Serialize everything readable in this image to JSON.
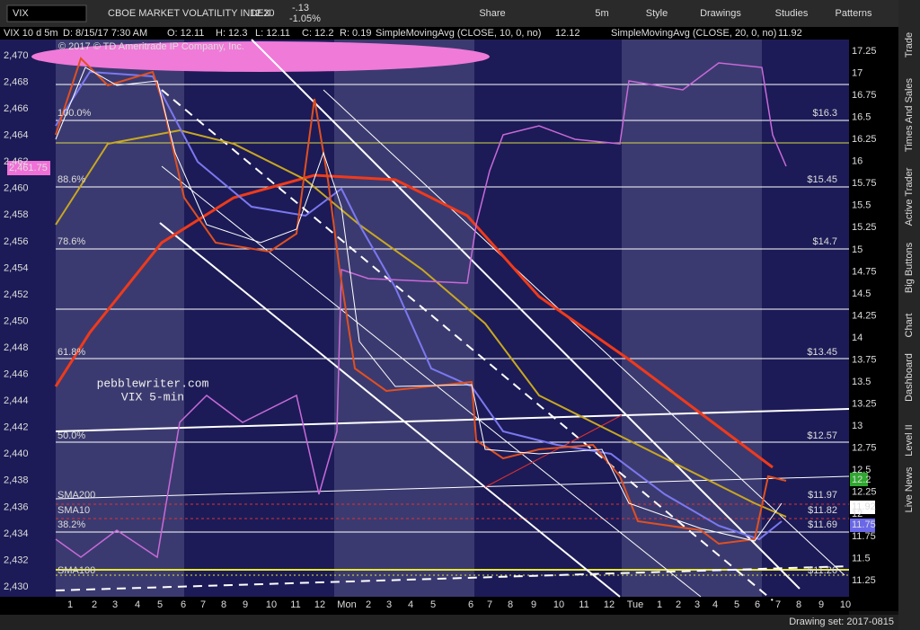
{
  "toolbar": {
    "symbol": "VIX",
    "description": "CBOE MARKET VOLATILITY INDEX",
    "last": "12.20",
    "change": "-.13",
    "change_pct": "-1.05%",
    "buttons": [
      "Share",
      "5m",
      "Style",
      "Drawings",
      "Studies",
      "Patterns"
    ]
  },
  "header": {
    "chart": "VIX 10 d 5m",
    "date": "D: 8/15/17 7:30 AM",
    "open": "O: 12.11",
    "high": "H: 12.3",
    "low": "L: 12.11",
    "close": "C: 12.2",
    "range": "R: 0.19",
    "study1": "SimpleMovingAvg (CLOSE, 10, 0, no)",
    "study1_value": "12.12",
    "study2": "SimpleMovingAvg (CLOSE, 20, 0, no)",
    "study2_value": "11.92"
  },
  "watermark": "© 2017 © TD Ameritrade IP Company, Inc.",
  "annotation": [
    "pebblewriter.com",
    "VIX 5-min"
  ],
  "left_axis": [
    "2,470",
    "2,468",
    "2,466",
    "2,464",
    "2,462",
    "2,460",
    "2,458",
    "2,456",
    "2,454",
    "2,452",
    "2,450",
    "2,448",
    "2,446",
    "2,444",
    "2,442",
    "2,440",
    "2,438",
    "2,436",
    "2,434",
    "2,432",
    "2,430"
  ],
  "left_tag": "2,461.75",
  "right_axis": [
    "17.25",
    "17",
    "16.75",
    "16.5",
    "16.25",
    "16",
    "15.75",
    "15.5",
    "15.25",
    "15",
    "14.75",
    "14.5",
    "14.25",
    "14",
    "13.75",
    "13.5",
    "13.25",
    "13",
    "12.75",
    "12.5",
    "12.25",
    "12",
    "11.75",
    "11.5",
    "11.25"
  ],
  "right_tags": [
    "12.2",
    "11.92",
    "11.75"
  ],
  "fib_labels": [
    "100.0%",
    "88.6%",
    "78.6%",
    "61.8%",
    "50.0%",
    "38.2%"
  ],
  "sma_labels": [
    "SMA200",
    "SMA10",
    "SMA100"
  ],
  "level_labels": [
    "$16.3",
    "$15.45",
    "$14.7",
    "$13.45",
    "$12.57",
    "$11.69",
    "$11.97",
    "$11.82",
    "$11.26"
  ],
  "x_axis": [
    "1",
    "2",
    "3",
    "4",
    "5",
    "6",
    "7",
    "8",
    "9",
    "10",
    "11",
    "12",
    "Mon",
    "2",
    "3",
    "4",
    "5",
    "6",
    "7",
    "8",
    "9",
    "10",
    "11",
    "12",
    "Tue",
    "1",
    "2",
    "3",
    "4",
    "5",
    "6",
    "7",
    "8",
    "9",
    "10"
  ],
  "side_tabs": [
    "Trade",
    "Times And Sales",
    "Active Trader",
    "Big Buttons",
    "Chart",
    "Dashboard",
    "Level II",
    "Live News"
  ],
  "drawing_set": "Drawing set: 2017-0815"
}
